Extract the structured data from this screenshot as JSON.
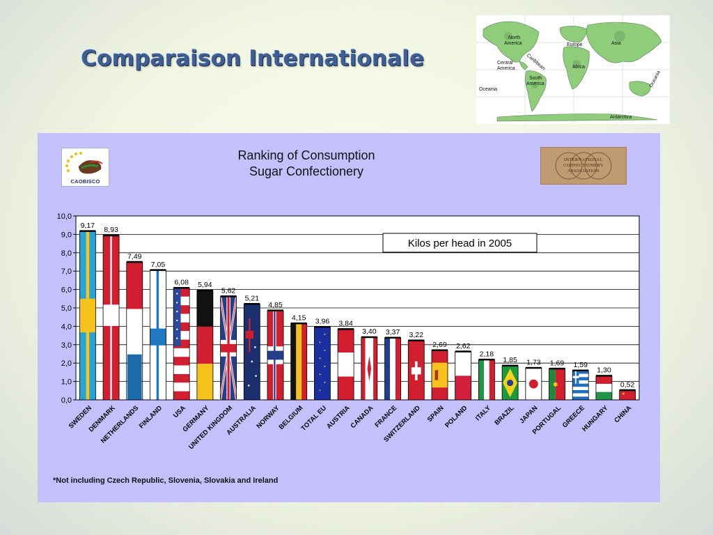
{
  "slide": {
    "title": "Comparaison Internationale"
  },
  "world_map": {
    "labels": [
      "North America",
      "Central America",
      "Caribbean",
      "South America",
      "Oceania",
      "Europe",
      "Asia",
      "Africa",
      "Oceania",
      "Antarctica"
    ]
  },
  "logos": {
    "left": "CAOBISCO",
    "right": "INTERNATIONAL CONFECTIONERY ASSOCIATION"
  },
  "footnote": "*Not including Czech Republic, Slovenia, Slovakia and Ireland",
  "chart_data": {
    "type": "bar",
    "title": "Ranking of Consumption",
    "subtitle": "Sugar Confectionery",
    "annotation": "Kilos per head in 2005",
    "categories": [
      "SWEDEN",
      "DENMARK",
      "NETHERLANDS",
      "FINLAND",
      "USA",
      "GERMANY",
      "UNITED KINGDOM",
      "AUSTRALIA",
      "NORWAY",
      "BELGIUM",
      "TOTAL EU",
      "AUSTRIA",
      "CANADA",
      "FRANCE",
      "SWITZERLAND",
      "SPAIN",
      "POLAND",
      "ITALY",
      "BRAZIL",
      "JAPAN",
      "PORTUGAL",
      "GREECE",
      "HUNGARY",
      "CHINA"
    ],
    "values": [
      9.17,
      8.93,
      7.49,
      7.05,
      6.08,
      5.94,
      5.62,
      5.21,
      4.85,
      4.15,
      3.96,
      3.84,
      3.4,
      3.37,
      3.22,
      2.69,
      2.62,
      2.18,
      1.85,
      1.73,
      1.69,
      1.59,
      1.3,
      0.52
    ],
    "value_labels": [
      "9,17",
      "8,93",
      "7,49",
      "7,05",
      "6,08",
      "5,94",
      "5,62",
      "5,21",
      "4,85",
      "4,15",
      "3,96",
      "3,84",
      "3,40",
      "3,37",
      "3,22",
      "2,69",
      "2,62",
      "2,18",
      "1,85",
      "1,73",
      "1,69",
      "1,59",
      "1,30",
      "0,52"
    ],
    "y_ticks": [
      "0,0",
      "1,0",
      "2,0",
      "3,0",
      "4,0",
      "5,0",
      "6,0",
      "7,0",
      "8,0",
      "9,0",
      "10,0"
    ],
    "ylim": [
      0,
      10
    ],
    "grid": true,
    "xlabel": "",
    "ylabel": "",
    "bar_flags": [
      "sweden",
      "denmark",
      "netherlands",
      "finland",
      "usa",
      "germany",
      "uk",
      "australia",
      "norway",
      "belgium",
      "eu",
      "austria",
      "canada",
      "france",
      "switzerland",
      "spain",
      "poland",
      "italy",
      "brazil",
      "japan",
      "portugal",
      "greece",
      "hungary",
      "china"
    ]
  }
}
